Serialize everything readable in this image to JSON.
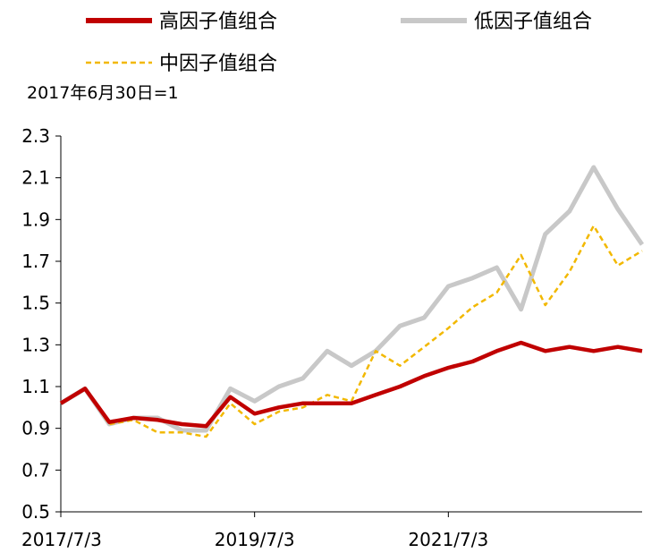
{
  "chart_data": {
    "type": "line",
    "title": "",
    "note": "2017年6月30日=1",
    "xlabel": "",
    "ylabel": "",
    "ylim": [
      0.5,
      2.3
    ],
    "yticks": [
      "0.5",
      "0.7",
      "0.9",
      "1.1",
      "1.3",
      "1.5",
      "1.7",
      "1.9",
      "2.1",
      "2.3"
    ],
    "xticks": [
      "2017/7/3",
      "2019/7/3",
      "2021/7/3"
    ],
    "x": [
      "2017/7/3",
      "2017/10",
      "2018/1",
      "2018/4",
      "2018/7",
      "2018/10",
      "2019/1",
      "2019/4",
      "2019/7/3",
      "2019/10",
      "2020/1",
      "2020/4",
      "2020/7",
      "2020/10",
      "2021/1",
      "2021/4",
      "2021/7/3",
      "2021/10",
      "2022/1",
      "2022/4",
      "2022/7",
      "2022/10",
      "2023/1",
      "2023/4",
      "2023/5"
    ],
    "x_tick_index": [
      0,
      8,
      16
    ],
    "legend_position": "top",
    "series": [
      {
        "name": "高因子值组合",
        "color": "#C00000",
        "style": "solid",
        "values": [
          1.02,
          1.09,
          0.93,
          0.95,
          0.94,
          0.92,
          0.91,
          1.05,
          0.97,
          1.0,
          1.02,
          1.02,
          1.02,
          1.06,
          1.1,
          1.15,
          1.19,
          1.22,
          1.27,
          1.31,
          1.27,
          1.29,
          1.27,
          1.29,
          1.27
        ]
      },
      {
        "name": "低因子值组合",
        "color": "#C8C8C8",
        "style": "solid",
        "values": [
          1.02,
          1.09,
          0.92,
          0.95,
          0.95,
          0.89,
          0.89,
          1.09,
          1.03,
          1.1,
          1.14,
          1.27,
          1.2,
          1.27,
          1.39,
          1.43,
          1.58,
          1.62,
          1.67,
          1.47,
          1.83,
          1.94,
          2.15,
          1.95,
          1.78
        ]
      },
      {
        "name": "中因子值组合",
        "color": "#F2B800",
        "style": "dashed",
        "values": [
          1.02,
          1.09,
          0.92,
          0.94,
          0.88,
          0.88,
          0.86,
          1.02,
          0.92,
          0.98,
          1.0,
          1.06,
          1.03,
          1.27,
          1.2,
          1.29,
          1.38,
          1.48,
          1.55,
          1.73,
          1.49,
          1.65,
          1.87,
          1.68,
          1.75
        ]
      }
    ]
  }
}
